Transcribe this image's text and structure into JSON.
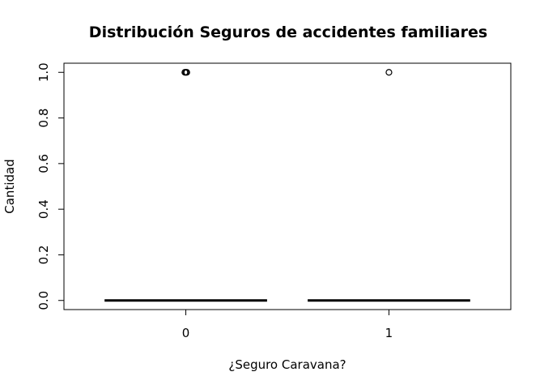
{
  "chart_data": {
    "type": "boxplot",
    "title": "Distribución Seguros de accidentes familiares",
    "xlabel": "¿Seguro Caravana?",
    "ylabel": "Cantidad",
    "categories": [
      "0",
      "1"
    ],
    "ylim": [
      -0.04,
      1.04
    ],
    "yticks": [
      0.0,
      0.2,
      0.4,
      0.6,
      0.8,
      1.0
    ],
    "ytick_labels": [
      "0.0",
      "0.2",
      "0.4",
      "0.6",
      "0.8",
      "1.0"
    ],
    "boxes": [
      {
        "category": "0",
        "min": 0,
        "q1": 0,
        "median": 0,
        "q3": 0,
        "max": 0,
        "outliers": [
          1,
          1,
          1
        ]
      },
      {
        "category": "1",
        "min": 0,
        "q1": 0,
        "median": 0,
        "q3": 0,
        "max": 0,
        "outliers": [
          1
        ]
      }
    ],
    "grid": false,
    "legend": "none",
    "colors": {
      "stroke": "#000000",
      "background": "#ffffff"
    }
  }
}
